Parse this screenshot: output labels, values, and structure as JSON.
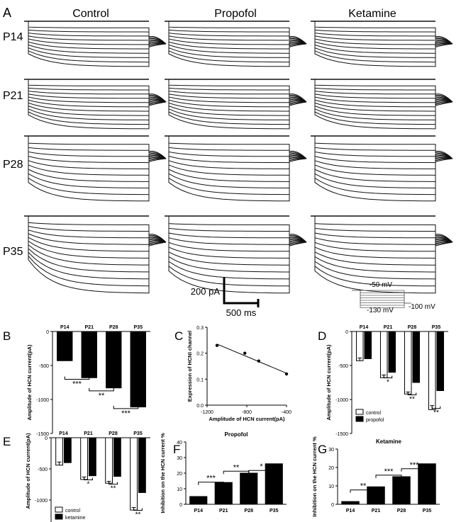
{
  "panel_letters": {
    "A": "A",
    "B": "B",
    "C": "C",
    "D": "D",
    "E": "E",
    "F": "F",
    "G": "G"
  },
  "traces": {
    "columns": [
      "Control",
      "Propofol",
      "Ketamine"
    ],
    "rows": [
      "P14",
      "P21",
      "P28",
      "P35"
    ],
    "scale_current": "200 pA",
    "scale_time": "500  ms",
    "protocol": {
      "hold": "-50 mV",
      "step": "-130 mV",
      "tail": "-100 mV"
    }
  },
  "chart_data": [
    {
      "panel": "B",
      "type": "bar",
      "categories": [
        "P14",
        "P21",
        "P28",
        "P35"
      ],
      "values": [
        -430,
        -680,
        -830,
        -1110
      ],
      "errors": [
        30,
        40,
        40,
        80
      ],
      "ylabel": "Amplitude of HCN current(pA)",
      "ylim": [
        -1500,
        0
      ],
      "yticks": [
        "0",
        "-500",
        "-1000",
        "-1500"
      ],
      "significance": [
        {
          "from": 0,
          "to": 1,
          "label": "***"
        },
        {
          "from": 1,
          "to": 2,
          "label": "**"
        },
        {
          "from": 2,
          "to": 3,
          "label": "***"
        }
      ]
    },
    {
      "panel": "C",
      "type": "scatter",
      "points": [
        {
          "x": -1100,
          "y": 0.23
        },
        {
          "x": -820,
          "y": 0.2
        },
        {
          "x": -680,
          "y": 0.17
        },
        {
          "x": -400,
          "y": 0.12
        }
      ],
      "fit": [
        {
          "x": -1100,
          "y": 0.235
        },
        {
          "x": -400,
          "y": 0.123
        }
      ],
      "xlabel": "Amplitude of HCN current(pA)",
      "ylabel": "Expression of HCNI channel",
      "xlim": [
        -1200,
        -400
      ],
      "ylim": [
        0,
        0.3
      ],
      "xticks": [
        "-1200",
        "-800",
        "-400"
      ],
      "yticks": [
        "0.0",
        "0.1",
        "0.2",
        "0.3"
      ]
    },
    {
      "panel": "D",
      "type": "bar",
      "categories": [
        "P14",
        "P21",
        "P28",
        "P35"
      ],
      "series": [
        {
          "name": "control",
          "values": [
            -430,
            -680,
            -920,
            -1150
          ],
          "errors": [
            40,
            40,
            30,
            60
          ]
        },
        {
          "name": "propofol",
          "values": [
            -400,
            -600,
            -750,
            -870
          ],
          "errors": [
            50,
            30,
            40,
            120
          ]
        }
      ],
      "ylabel": "Amplitude of HCN current(pA)",
      "ylim": [
        -1500,
        0
      ],
      "yticks": [
        "0",
        "-500",
        "-1000",
        "-1500"
      ],
      "sig_labels": [
        "*",
        "**",
        "**"
      ]
    },
    {
      "panel": "E",
      "type": "bar",
      "categories": [
        "P14",
        "P21",
        "P28",
        "P35"
      ],
      "series": [
        {
          "name": "control",
          "values": [
            -440,
            -670,
            -730,
            -1160
          ],
          "errors": [
            50,
            40,
            30,
            40
          ]
        },
        {
          "name": "ketamine",
          "values": [
            -400,
            -610,
            -620,
            -880
          ],
          "errors": [
            50,
            30,
            30,
            40
          ]
        }
      ],
      "ylabel": "Amplitude of HCN current(pA)",
      "ylim": [
        -1500,
        0
      ],
      "yticks": [
        "0",
        "-500",
        "-1000",
        "-1500"
      ],
      "sig_labels": [
        "*",
        "**",
        "**"
      ]
    },
    {
      "panel": "F",
      "type": "bar",
      "title": "Propofol",
      "categories": [
        "P14",
        "P21",
        "P28",
        "P35"
      ],
      "values": [
        5,
        14,
        20,
        26
      ],
      "errors": [
        1.5,
        2.5,
        1.5,
        7
      ],
      "ylabel": "Inhibition on the HCN current %",
      "ylim": [
        0,
        40
      ],
      "yticks": [
        "0",
        "10",
        "20",
        "30",
        "40"
      ],
      "significance": [
        {
          "from": 0,
          "to": 1,
          "label": "***"
        },
        {
          "from": 1,
          "to": 2,
          "label": "**"
        },
        {
          "from": 2,
          "to": 3,
          "label": "*"
        }
      ]
    },
    {
      "panel": "G",
      "type": "bar",
      "title": "Ketamine",
      "categories": [
        "P14",
        "P21",
        "P28",
        "P35"
      ],
      "values": [
        1.5,
        9.5,
        15,
        22
      ],
      "errors": [
        0.8,
        4,
        1.5,
        5
      ],
      "ylabel": "Inhibition on the HCN current %",
      "ylim": [
        0,
        30
      ],
      "yticks": [
        "0",
        "10",
        "20",
        "30"
      ],
      "significance": [
        {
          "from": 0,
          "to": 1,
          "label": "**"
        },
        {
          "from": 1,
          "to": 2,
          "label": "***"
        },
        {
          "from": 2,
          "to": 3,
          "label": "***"
        }
      ]
    }
  ]
}
